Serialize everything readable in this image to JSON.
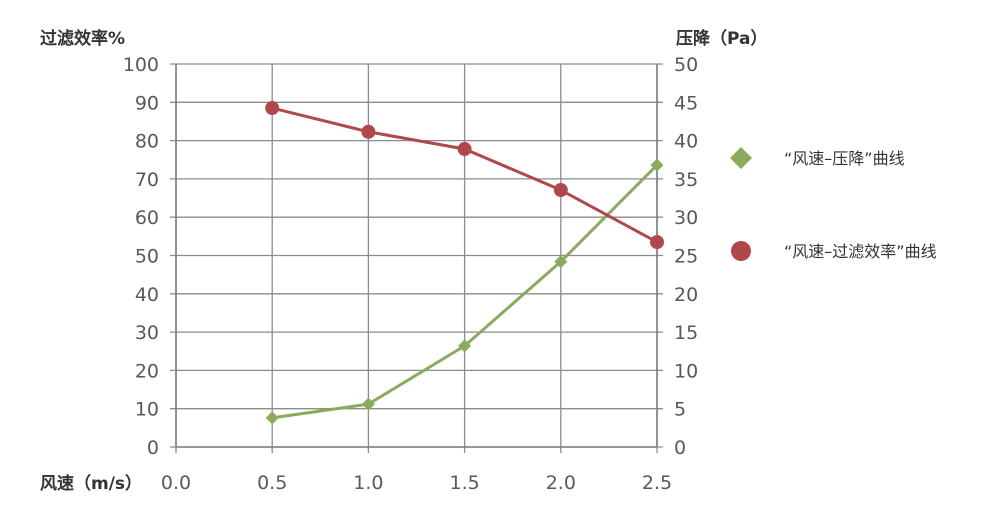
{
  "chart_data": {
    "type": "line",
    "x": [
      0.5,
      1.0,
      1.5,
      2.0,
      2.5
    ],
    "xlim": [
      0.0,
      2.5
    ],
    "x_ticks": [
      "0.0",
      "0.5",
      "1.0",
      "1.5",
      "2.0",
      "2.5"
    ],
    "xlabel": "风速（m/s）",
    "ylabel_left": "过滤效率%",
    "ylabel_right": "压降（Pa）",
    "ylim_left": [
      0,
      100
    ],
    "ylim_right": [
      0,
      50
    ],
    "y_left_ticks": [
      "0",
      "10",
      "20",
      "30",
      "40",
      "50",
      "60",
      "70",
      "80",
      "90",
      "100"
    ],
    "y_right_ticks": [
      "0",
      "5",
      "10",
      "15",
      "20",
      "25",
      "30",
      "35",
      "40",
      "45",
      "50"
    ],
    "grid": true,
    "legend_position": "right",
    "series": [
      {
        "name": "“风速–压降”曲线",
        "axis": "right",
        "values": [
          3.8,
          5.6,
          13.2,
          24.2,
          36.8
        ],
        "color": "#8aaa5c",
        "marker": "diamond"
      },
      {
        "name": "“风速–过滤效率”曲线",
        "axis": "left",
        "values": [
          88.5,
          82.3,
          77.8,
          67.1,
          53.5
        ],
        "color": "#b0484b",
        "marker": "circle"
      }
    ]
  }
}
